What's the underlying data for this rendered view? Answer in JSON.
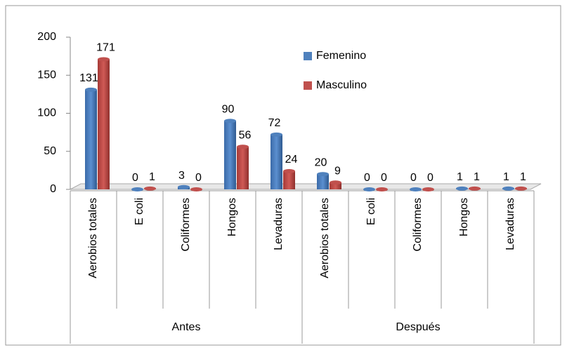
{
  "chart_data": {
    "type": "bar",
    "categories": [
      "Aerobios totales",
      "E coli",
      "Coliformes",
      "Hongos",
      "Levaduras",
      "Aerobios totales",
      "E coli",
      "Coliformes",
      "Hongos",
      "Levaduras"
    ],
    "groups": [
      "Antes",
      "Después"
    ],
    "series": [
      {
        "name": "Femenino",
        "color": "#4f81bd",
        "values": [
          131,
          0,
          3,
          90,
          72,
          20,
          0,
          0,
          1,
          1
        ]
      },
      {
        "name": "Masculino",
        "color": "#c0504d",
        "values": [
          171,
          1,
          0,
          56,
          24,
          9,
          0,
          0,
          1,
          1
        ]
      }
    ],
    "ylim": [
      0,
      200
    ],
    "yticks": [
      0,
      50,
      100,
      150,
      200
    ],
    "grid": false
  }
}
